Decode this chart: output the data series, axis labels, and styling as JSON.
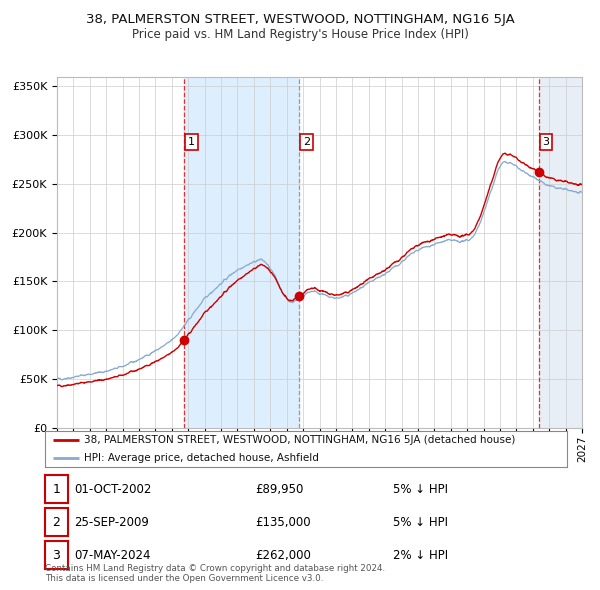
{
  "title": "38, PALMERSTON STREET, WESTWOOD, NOTTINGHAM, NG16 5JA",
  "subtitle": "Price paid vs. HM Land Registry's House Price Index (HPI)",
  "legend_line1": "38, PALMERSTON STREET, WESTWOOD, NOTTINGHAM, NG16 5JA (detached house)",
  "legend_line2": "HPI: Average price, detached house, Ashfield",
  "footer": "Contains HM Land Registry data © Crown copyright and database right 2024.\nThis data is licensed under the Open Government Licence v3.0.",
  "transactions": [
    {
      "num": 1,
      "date": "01-OCT-2002",
      "price": 89950,
      "pct": "5%",
      "dir": "↓",
      "year": 2002.75
    },
    {
      "num": 2,
      "date": "25-SEP-2009",
      "price": 135000,
      "pct": "5%",
      "dir": "↓",
      "year": 2009.73
    },
    {
      "num": 3,
      "date": "07-MAY-2024",
      "price": 262000,
      "pct": "2%",
      "dir": "↓",
      "year": 2024.35
    }
  ],
  "red_line_color": "#cc0000",
  "blue_line_color": "#88aacc",
  "shade_color": "#ddeeff",
  "grid_color": "#cccccc",
  "bg_color": "#ffffff",
  "ymin": 0,
  "ymax": 360000,
  "xmin": 1995,
  "xmax": 2027,
  "yticks": [
    0,
    50000,
    100000,
    150000,
    200000,
    250000,
    300000,
    350000
  ]
}
